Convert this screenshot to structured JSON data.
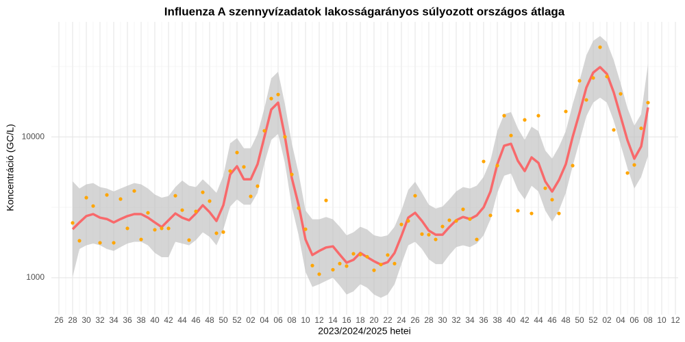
{
  "chart_data": {
    "type": "line",
    "title": "Influenza A szennyvízadatok lakosságarányos súlyozott országos átlaga",
    "x_label": "2023/2024/2025 hetei",
    "y_label": "Koncentráció (GC/L)",
    "log_y": true,
    "grid": true,
    "xlim": [
      -1.1,
      90.4
    ],
    "ylim": [
      547,
      65500
    ],
    "yticks": [
      1000,
      10000
    ],
    "y_minor_ticks": [
      3162,
      31623
    ],
    "xticks": [
      {
        "value": 0,
        "label": "26"
      },
      {
        "value": 2,
        "label": "28"
      },
      {
        "value": 4,
        "label": "30"
      },
      {
        "value": 6,
        "label": "32"
      },
      {
        "value": 8,
        "label": "34"
      },
      {
        "value": 10,
        "label": "36"
      },
      {
        "value": 12,
        "label": "38"
      },
      {
        "value": 14,
        "label": "40"
      },
      {
        "value": 16,
        "label": "42"
      },
      {
        "value": 18,
        "label": "44"
      },
      {
        "value": 20,
        "label": "46"
      },
      {
        "value": 22,
        "label": "48"
      },
      {
        "value": 24,
        "label": "50"
      },
      {
        "value": 26,
        "label": "52"
      },
      {
        "value": 28,
        "label": "02"
      },
      {
        "value": 30,
        "label": "04"
      },
      {
        "value": 32,
        "label": "06"
      },
      {
        "value": 34,
        "label": "08"
      },
      {
        "value": 36,
        "label": "10"
      },
      {
        "value": 38,
        "label": "12"
      },
      {
        "value": 40,
        "label": "14"
      },
      {
        "value": 42,
        "label": "16"
      },
      {
        "value": 44,
        "label": "18"
      },
      {
        "value": 46,
        "label": "20"
      },
      {
        "value": 48,
        "label": "22"
      },
      {
        "value": 50,
        "label": "24"
      },
      {
        "value": 52,
        "label": "26"
      },
      {
        "value": 54,
        "label": "28"
      },
      {
        "value": 56,
        "label": "30"
      },
      {
        "value": 58,
        "label": "32"
      },
      {
        "value": 60,
        "label": "34"
      },
      {
        "value": 62,
        "label": "36"
      },
      {
        "value": 64,
        "label": "38"
      },
      {
        "value": 66,
        "label": "40"
      },
      {
        "value": 68,
        "label": "42"
      },
      {
        "value": 70,
        "label": "44"
      },
      {
        "value": 72,
        "label": "46"
      },
      {
        "value": 74,
        "label": "48"
      },
      {
        "value": 76,
        "label": "50"
      },
      {
        "value": 78,
        "label": "52"
      },
      {
        "value": 80,
        "label": "02"
      },
      {
        "value": 82,
        "label": "04"
      },
      {
        "value": 84,
        "label": "06"
      },
      {
        "value": 86,
        "label": "08"
      },
      {
        "value": 88,
        "label": "10"
      },
      {
        "value": 90,
        "label": "12"
      }
    ],
    "x": [
      2,
      3,
      4,
      5,
      6,
      7,
      8,
      9,
      10,
      11,
      12,
      13,
      14,
      15,
      16,
      17,
      18,
      19,
      20,
      21,
      22,
      23,
      24,
      25,
      26,
      27,
      28,
      29,
      30,
      31,
      32,
      33,
      34,
      35,
      36,
      37,
      38,
      39,
      40,
      41,
      42,
      43,
      44,
      45,
      46,
      47,
      48,
      49,
      50,
      51,
      52,
      53,
      54,
      55,
      56,
      57,
      58,
      59,
      60,
      61,
      62,
      63,
      64,
      65,
      66,
      67,
      68,
      69,
      70,
      71,
      72,
      73,
      74,
      75,
      76,
      77,
      78,
      79,
      80,
      81,
      82,
      83,
      84,
      85,
      86
    ],
    "band": {
      "color": "#bebebe",
      "upper": [
        4840,
        4300,
        4600,
        4700,
        4400,
        4300,
        4100,
        4300,
        4500,
        4700,
        4600,
        4300,
        3900,
        3700,
        3800,
        4400,
        4900,
        4500,
        4400,
        5000,
        4500,
        4000,
        5300,
        9000,
        9800,
        8300,
        8300,
        10500,
        16000,
        26000,
        29000,
        17000,
        9000,
        5500,
        3000,
        2600,
        2600,
        2700,
        2600,
        2300,
        2000,
        2100,
        2300,
        2200,
        2000,
        1950,
        2000,
        2300,
        3000,
        4200,
        4800,
        4000,
        3300,
        3100,
        3200,
        3600,
        4100,
        4400,
        4300,
        4500,
        5200,
        6800,
        11000,
        14500,
        15000,
        11500,
        9500,
        11800,
        11000,
        8000,
        7000,
        8500,
        11000,
        17000,
        25000,
        38000,
        48000,
        52000,
        47000,
        35000,
        24000,
        16000,
        12000,
        14500,
        33000
      ],
      "lower": [
        1010,
        1600,
        1700,
        1750,
        1700,
        1600,
        1550,
        1650,
        1750,
        1800,
        1800,
        1700,
        1500,
        1400,
        1400,
        1800,
        1750,
        1700,
        1850,
        2100,
        1950,
        1700,
        2200,
        3200,
        3600,
        3300,
        3300,
        4000,
        6500,
        9500,
        10500,
        6500,
        3200,
        2000,
        1100,
        860,
        900,
        950,
        1000,
        880,
        760,
        800,
        900,
        850,
        760,
        720,
        760,
        900,
        1250,
        1700,
        1800,
        1600,
        1350,
        1250,
        1250,
        1450,
        1650,
        1700,
        1650,
        1750,
        2000,
        2600,
        4000,
        5300,
        5500,
        4200,
        3600,
        4500,
        4100,
        3000,
        2500,
        3000,
        4000,
        6200,
        9300,
        14000,
        17500,
        19000,
        17500,
        13000,
        8800,
        6000,
        4300,
        5200,
        7300
      ]
    },
    "line": {
      "color": "#f8696b",
      "values": [
        2210,
        2470,
        2740,
        2830,
        2670,
        2610,
        2470,
        2610,
        2740,
        2830,
        2830,
        2670,
        2470,
        2290,
        2560,
        2860,
        2670,
        2560,
        2860,
        3270,
        2920,
        2530,
        3270,
        5410,
        6180,
        5000,
        5000,
        6400,
        10000,
        15640,
        17490,
        10000,
        5110,
        3270,
        1870,
        1450,
        1550,
        1640,
        1670,
        1460,
        1280,
        1340,
        1500,
        1400,
        1310,
        1240,
        1290,
        1500,
        1980,
        2670,
        2890,
        2530,
        2160,
        2020,
        2020,
        2290,
        2560,
        2700,
        2610,
        2770,
        3160,
        4090,
        6400,
        8650,
        8930,
        6760,
        5720,
        7150,
        6540,
        4830,
        4090,
        4940,
        6400,
        10000,
        14790,
        22370,
        28600,
        31260,
        27980,
        20680,
        13990,
        9460,
        7000,
        8550,
        16170
      ]
    },
    "points": {
      "color": "#ffa500",
      "values": [
        2450,
        1830,
        3700,
        3230,
        1770,
        3870,
        1770,
        3620,
        2240,
        4130,
        1870,
        2890,
        2190,
        2240,
        2240,
        3820,
        3020,
        1850,
        2960,
        4040,
        3500,
        2070,
        2110,
        5720,
        7740,
        6120,
        3780,
        4470,
        11050,
        18700,
        19980,
        10000,
        5410,
        3120,
        2210,
        1220,
        1060,
        3540,
        1140,
        1260,
        1210,
        1480,
        1460,
        1410,
        1130,
        1240,
        1450,
        1260,
        2390,
        2530,
        3820,
        2040,
        2020,
        1870,
        2310,
        2560,
        2530,
        3060,
        2610,
        1870,
        6690,
        2770,
        6250,
        14140,
        10230,
        2990,
        13200,
        2860,
        14140,
        4320,
        3580,
        2860,
        15150,
        6250,
        25000,
        18300,
        26200,
        43300,
        26800,
        11200,
        20200,
        5540,
        6320,
        11500,
        17500
      ]
    }
  }
}
